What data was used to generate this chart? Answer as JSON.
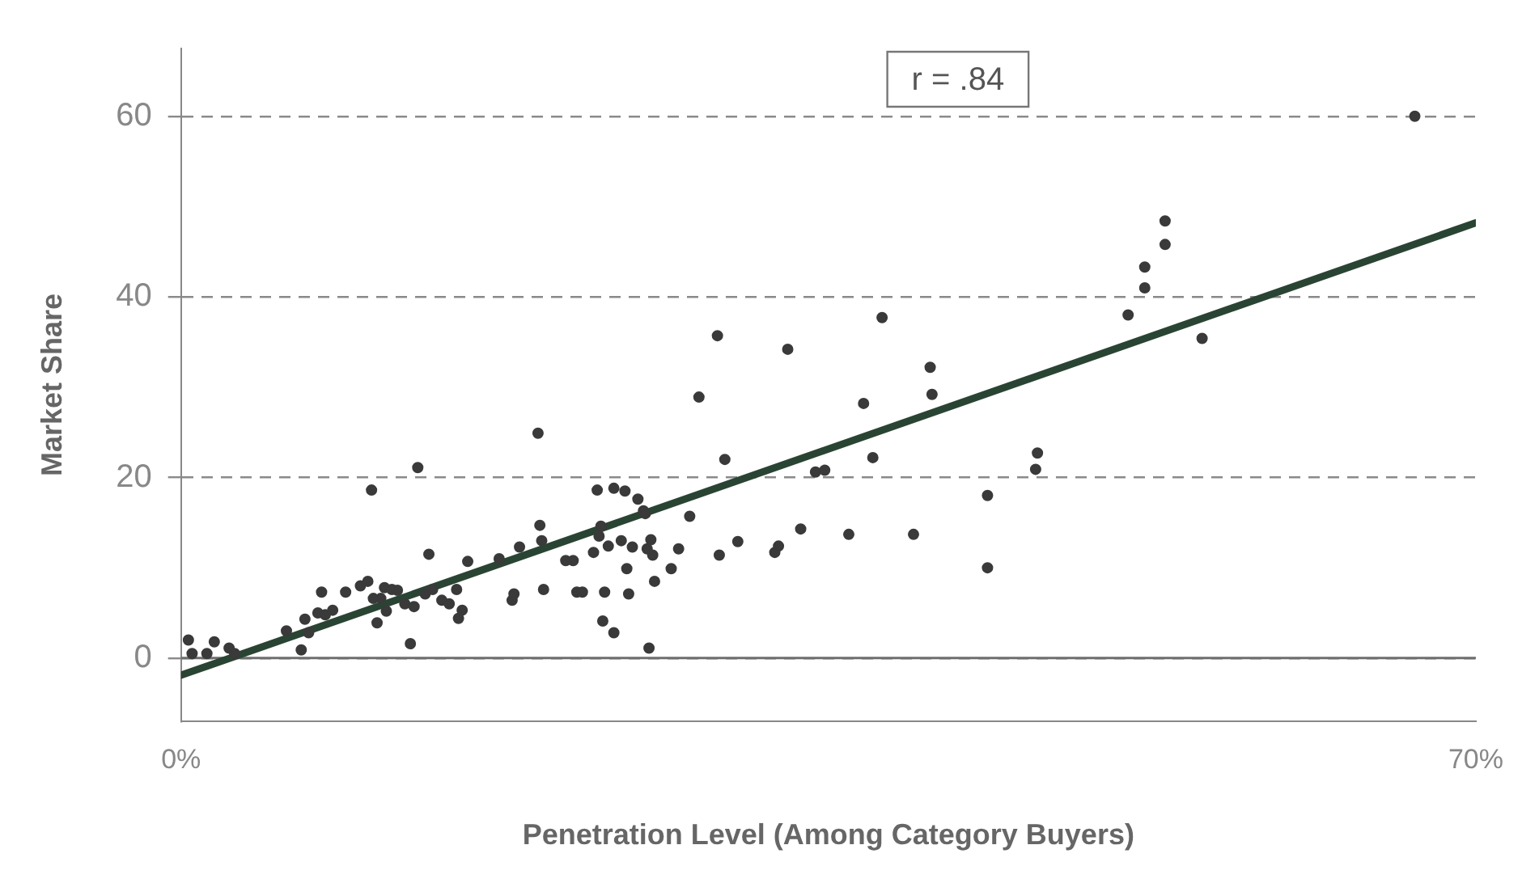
{
  "chart_data": {
    "type": "scatter",
    "xlabel": "Penetration Level (Among Category Buyers)",
    "ylabel": "Market Share",
    "annotations": [
      "r = .84"
    ],
    "xlim": [
      0,
      70
    ],
    "xticks": [
      {
        "value": 0,
        "label": "0%"
      },
      {
        "value": 70,
        "label": "70%"
      }
    ],
    "ylim": [
      -7,
      67.5
    ],
    "yticks": [
      0,
      20,
      40,
      60
    ],
    "grid": "y",
    "legend": false,
    "ref_lines": [
      {
        "axis": "y",
        "value": 0,
        "color": "#6e6e6e",
        "line_style": "solid"
      }
    ],
    "series": [
      {
        "type": "scatter",
        "color": "#3a3a3a",
        "x": [
          0.4,
          0.6,
          1.4,
          1.8,
          2.6,
          2.9,
          5.7,
          6.5,
          6.7,
          6.9,
          7.4,
          7.6,
          7.8,
          8.2,
          8.9,
          9.7,
          10.1,
          10.3,
          10.4,
          10.6,
          10.8,
          11,
          11.1,
          11.4,
          11.7,
          12.1,
          12.4,
          12.6,
          12.8,
          13.2,
          13.4,
          13.6,
          14.1,
          14.5,
          14.9,
          15,
          15.2,
          15.5,
          17.2,
          17.9,
          18,
          18.3,
          19.3,
          19.4,
          19.5,
          19.6,
          20.8,
          21.2,
          21.4,
          21.7,
          22.3,
          22.5,
          22.6,
          22.7,
          22.8,
          22.9,
          23.1,
          23.4,
          23.4,
          24,
          23.8,
          24.1,
          24.2,
          24.4,
          24.7,
          25,
          25.1,
          25.2,
          25.3,
          25.4,
          25.5,
          25.6,
          26.5,
          26.9,
          27.5,
          28,
          29,
          29.1,
          29.4,
          30.1,
          32.1,
          32.3,
          32.8,
          33.5,
          34.3,
          34.8,
          36.1,
          36.9,
          37.4,
          37.9,
          39.6,
          40.6,
          40.5,
          43.6,
          43.6,
          46.2,
          46.3,
          51.2,
          52.1,
          52.1,
          53.2,
          53.2,
          55.2,
          66.7
        ],
        "values": [
          2,
          0.5,
          0.5,
          1.8,
          1.1,
          0.5,
          3,
          0.9,
          4.3,
          2.8,
          5,
          7.3,
          4.8,
          5.3,
          7.3,
          8,
          8.5,
          18.6,
          6.6,
          3.9,
          6.6,
          7.8,
          5.2,
          7.6,
          7.5,
          6,
          1.6,
          5.7,
          21.1,
          7.1,
          11.5,
          7.6,
          6.4,
          6,
          7.6,
          4.4,
          5.3,
          10.7,
          11,
          6.4,
          7.1,
          12.3,
          24.9,
          14.7,
          13,
          7.6,
          10.8,
          10.8,
          7.3,
          7.3,
          11.7,
          18.6,
          13.5,
          14.6,
          4.1,
          7.3,
          12.4,
          2.8,
          18.8,
          18.5,
          13,
          9.9,
          7.1,
          12.3,
          17.6,
          16.3,
          16,
          12.1,
          1.1,
          13.1,
          11.4,
          8.5,
          9.9,
          12.1,
          15.7,
          28.9,
          35.7,
          11.4,
          22,
          12.9,
          11.7,
          12.4,
          34.2,
          14.3,
          20.6,
          20.8,
          13.7,
          28.2,
          22.2,
          37.7,
          13.7,
          29.2,
          32.2,
          18,
          10,
          20.9,
          22.7,
          38,
          41,
          43.3,
          45.8,
          48.4,
          35.4,
          60
        ]
      },
      {
        "type": "line",
        "color": "#2a4434",
        "x": [
          0,
          70
        ],
        "values": [
          -1.9,
          48.2
        ]
      }
    ]
  }
}
